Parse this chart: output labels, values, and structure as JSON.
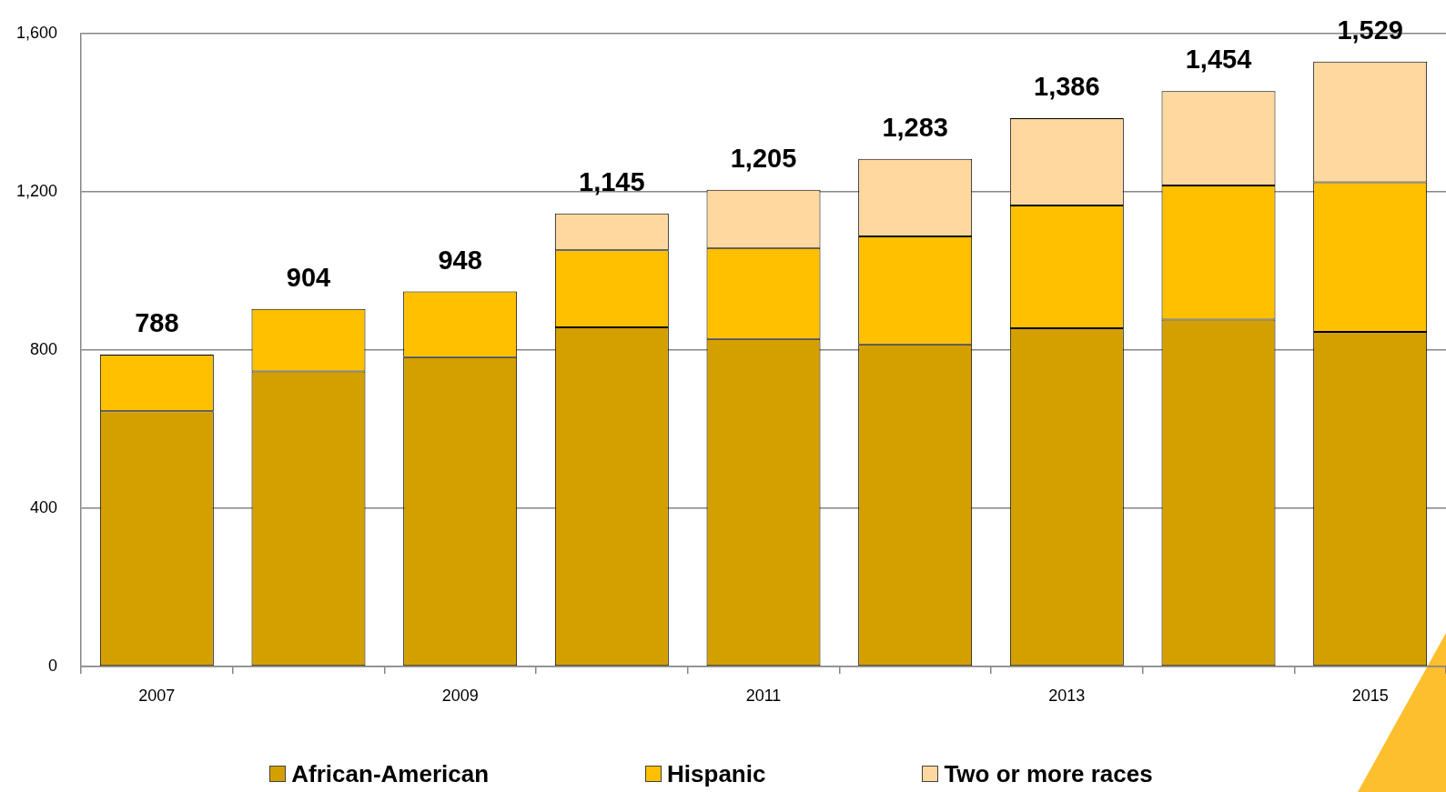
{
  "chart_data": {
    "type": "bar",
    "stacked": true,
    "categories": [
      "2007",
      null,
      "2009",
      null,
      "2011",
      null,
      "2013",
      null,
      "2015"
    ],
    "series": [
      {
        "name": "African-American",
        "color": "#d4a000",
        "values": [
          645,
          746,
          782,
          857,
          828,
          814,
          855,
          877,
          846
        ]
      },
      {
        "name": "Hispanic",
        "color": "#ffc000",
        "values": [
          143,
          158,
          166,
          195,
          230,
          273,
          310,
          339,
          378
        ]
      },
      {
        "name": "Two or more races",
        "color": "#ffd8a0",
        "values": [
          null,
          null,
          null,
          93,
          147,
          196,
          221,
          238,
          305
        ]
      }
    ],
    "totals": [
      "788",
      "904",
      "948",
      "1,145",
      "1,205",
      "1,283",
      "1,386",
      "1,454",
      "1,529"
    ],
    "ylim": [
      0,
      1600
    ],
    "yticks": [
      0,
      400,
      800,
      {
        "value": 1200,
        "label": "1,200"
      },
      {
        "value": 1600,
        "label": "1,600"
      }
    ],
    "grid": "y",
    "legend": "bottom"
  }
}
